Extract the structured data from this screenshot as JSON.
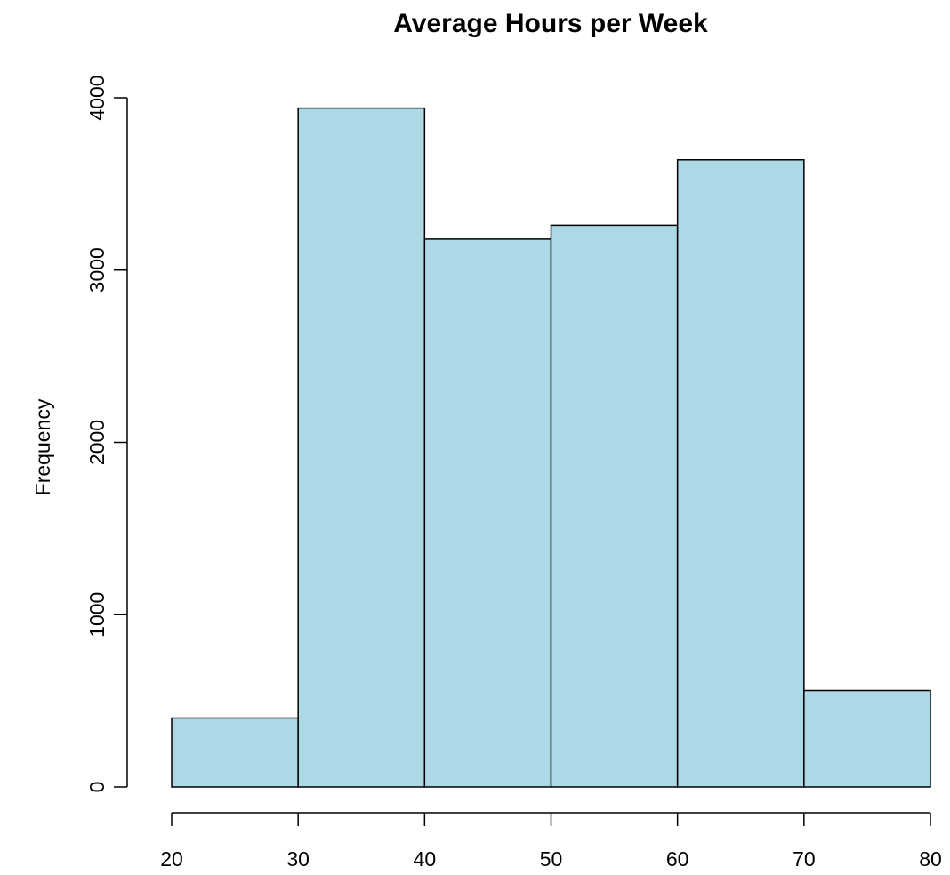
{
  "chart_data": {
    "type": "bar",
    "title": "Average Hours per Week",
    "xlabel": "",
    "ylabel": "Frequency",
    "bins": [
      {
        "start": 20,
        "end": 30,
        "value": 400
      },
      {
        "start": 30,
        "end": 40,
        "value": 3940
      },
      {
        "start": 40,
        "end": 50,
        "value": 3180
      },
      {
        "start": 50,
        "end": 60,
        "value": 3260
      },
      {
        "start": 60,
        "end": 70,
        "value": 3640
      },
      {
        "start": 70,
        "end": 80,
        "value": 560
      }
    ],
    "x_ticks": [
      "20",
      "30",
      "40",
      "50",
      "60",
      "70",
      "80"
    ],
    "y_ticks": [
      "0",
      "1000",
      "2000",
      "3000",
      "4000"
    ],
    "xlim": [
      20,
      80
    ],
    "ylim": [
      0,
      4000
    ],
    "bar_color": "#add8e6",
    "grid": false
  }
}
